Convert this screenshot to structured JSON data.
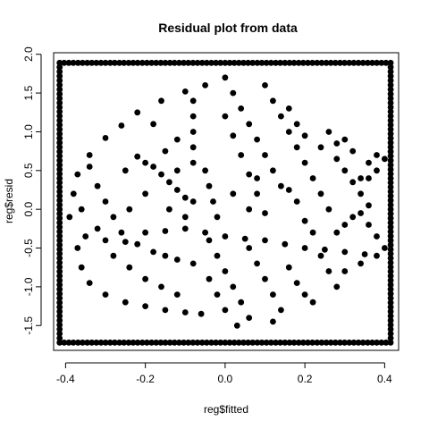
{
  "chart_data": {
    "type": "scatter",
    "title": "Residual plot from data",
    "xlabel": "reg$fitted",
    "ylabel": "reg$resid",
    "xlim": [
      -0.43,
      0.435
    ],
    "ylim": [
      -1.82,
      2.02
    ],
    "x_ticks": [
      -0.4,
      -0.2,
      0.0,
      0.2,
      0.4
    ],
    "x_tick_labels": [
      "-0.4",
      "-0.2",
      "0.0",
      "0.2",
      "0.4"
    ],
    "y_ticks": [
      -1.5,
      -1.0,
      -0.5,
      0.0,
      0.5,
      1.0,
      1.5,
      2.0
    ],
    "y_tick_labels": [
      "-1.5",
      "-1.0",
      "-0.5",
      "0.0",
      "0.5",
      "1.0",
      "1.5",
      "2.0"
    ],
    "grid": false,
    "point_color": "#000000",
    "frame_points": {
      "x_range": [
        -0.415,
        0.415
      ],
      "y_range": [
        -1.72,
        1.89
      ]
    },
    "series": [
      {
        "points": [
          [
            -0.26,
            1.08
          ],
          [
            -0.22,
            1.25
          ],
          [
            -0.16,
            1.4
          ],
          [
            -0.1,
            1.52
          ],
          [
            -0.05,
            1.6
          ],
          [
            -0.3,
            0.92
          ],
          [
            -0.34,
            0.7
          ],
          [
            -0.37,
            0.45
          ],
          [
            -0.38,
            0.2
          ],
          [
            -0.39,
            -0.1
          ],
          [
            -0.37,
            -0.5
          ],
          [
            -0.36,
            -0.75
          ],
          [
            -0.34,
            -0.95
          ],
          [
            -0.3,
            -1.1
          ],
          [
            -0.25,
            -1.2
          ],
          [
            -0.2,
            -1.25
          ],
          [
            -0.15,
            -1.3
          ],
          [
            -0.1,
            -1.33
          ],
          [
            -0.06,
            -1.35
          ],
          [
            -0.18,
            0.55
          ],
          [
            -0.16,
            0.45
          ],
          [
            -0.14,
            0.35
          ],
          [
            -0.2,
            0.6
          ],
          [
            -0.22,
            0.68
          ],
          [
            -0.12,
            0.25
          ],
          [
            -0.1,
            0.15
          ],
          [
            -0.08,
            0.1
          ],
          [
            -0.15,
            0.75
          ],
          [
            -0.25,
            0.5
          ],
          [
            -0.32,
            0.3
          ],
          [
            -0.3,
            0.1
          ],
          [
            -0.28,
            -0.1
          ],
          [
            -0.26,
            -0.3
          ],
          [
            -0.22,
            -0.45
          ],
          [
            -0.18,
            -0.55
          ],
          [
            -0.15,
            -0.6
          ],
          [
            -0.12,
            -0.65
          ],
          [
            -0.08,
            -0.7
          ],
          [
            -0.35,
            -0.35
          ],
          [
            -0.3,
            -0.4
          ],
          [
            -0.25,
            -0.42
          ],
          [
            -0.2,
            -0.3
          ],
          [
            -0.15,
            -0.28
          ],
          [
            -0.1,
            -0.25
          ],
          [
            -0.05,
            -0.3
          ],
          [
            0.0,
            -0.35
          ],
          [
            0.05,
            -0.38
          ],
          [
            0.1,
            -0.4
          ],
          [
            0.15,
            -0.45
          ],
          [
            0.2,
            -0.5
          ],
          [
            0.25,
            -0.52
          ],
          [
            0.3,
            -0.55
          ],
          [
            0.35,
            -0.58
          ],
          [
            -0.08,
            0.6
          ],
          [
            -0.08,
            0.8
          ],
          [
            -0.08,
            1.0
          ],
          [
            -0.08,
            1.2
          ],
          [
            -0.08,
            1.4
          ],
          [
            -0.05,
            0.5
          ],
          [
            -0.04,
            0.3
          ],
          [
            -0.03,
            0.1
          ],
          [
            -0.02,
            -0.1
          ],
          [
            0.0,
            1.7
          ],
          [
            0.02,
            1.5
          ],
          [
            0.04,
            1.3
          ],
          [
            0.06,
            1.1
          ],
          [
            0.08,
            0.9
          ],
          [
            0.1,
            0.7
          ],
          [
            0.12,
            0.5
          ],
          [
            0.14,
            0.3
          ],
          [
            0.0,
            1.2
          ],
          [
            0.02,
            0.95
          ],
          [
            0.04,
            0.7
          ],
          [
            0.06,
            0.45
          ],
          [
            0.08,
            0.2
          ],
          [
            0.1,
            -0.05
          ],
          [
            0.1,
            1.6
          ],
          [
            0.12,
            1.4
          ],
          [
            0.14,
            1.2
          ],
          [
            0.16,
            1.0
          ],
          [
            0.18,
            0.8
          ],
          [
            0.2,
            0.6
          ],
          [
            0.22,
            0.4
          ],
          [
            0.24,
            0.2
          ],
          [
            0.26,
            0.0
          ],
          [
            0.16,
            1.3
          ],
          [
            0.18,
            1.1
          ],
          [
            0.2,
            0.95
          ],
          [
            0.24,
            0.8
          ],
          [
            0.28,
            0.65
          ],
          [
            0.3,
            0.5
          ],
          [
            0.32,
            0.35
          ],
          [
            0.34,
            0.2
          ],
          [
            0.36,
            0.05
          ],
          [
            0.26,
            1.0
          ],
          [
            0.28,
            0.85
          ],
          [
            0.32,
            0.75
          ],
          [
            0.36,
            0.6
          ],
          [
            0.38,
            0.5
          ],
          [
            0.4,
            0.65
          ],
          [
            0.38,
            0.7
          ],
          [
            0.36,
            0.4
          ],
          [
            0.34,
            -0.05
          ],
          [
            0.36,
            -0.2
          ],
          [
            0.38,
            -0.35
          ],
          [
            0.4,
            -0.5
          ],
          [
            0.38,
            -0.6
          ],
          [
            0.34,
            -0.7
          ],
          [
            0.3,
            -0.8
          ],
          [
            -0.04,
            -0.4
          ],
          [
            -0.02,
            -0.6
          ],
          [
            0.0,
            -0.8
          ],
          [
            0.02,
            -1.0
          ],
          [
            0.04,
            -1.2
          ],
          [
            0.06,
            -1.4
          ],
          [
            0.03,
            -1.5
          ],
          [
            0.0,
            -1.3
          ],
          [
            -0.02,
            -1.1
          ],
          [
            -0.04,
            -0.9
          ],
          [
            0.06,
            -0.5
          ],
          [
            0.08,
            -0.7
          ],
          [
            0.1,
            -0.9
          ],
          [
            0.12,
            -1.1
          ],
          [
            0.14,
            -1.3
          ],
          [
            0.12,
            -1.45
          ],
          [
            0.16,
            -0.75
          ],
          [
            0.18,
            -0.95
          ],
          [
            0.2,
            -1.1
          ],
          [
            0.22,
            -1.2
          ],
          [
            0.24,
            -0.6
          ],
          [
            0.26,
            -0.8
          ],
          [
            0.28,
            -1.0
          ],
          [
            0.22,
            -0.3
          ],
          [
            0.2,
            -0.15
          ],
          [
            0.28,
            -0.3
          ],
          [
            0.3,
            -0.2
          ],
          [
            0.32,
            -0.1
          ],
          [
            0.18,
            0.1
          ],
          [
            0.16,
            0.25
          ],
          [
            0.3,
            0.9
          ],
          [
            0.34,
            0.4
          ],
          [
            0.06,
            0.0
          ],
          [
            0.02,
            0.2
          ],
          [
            0.08,
            0.4
          ],
          [
            -0.12,
            0.5
          ],
          [
            -0.2,
            0.2
          ],
          [
            -0.24,
            0.0
          ],
          [
            -0.14,
            0.0
          ],
          [
            -0.1,
            -0.1
          ],
          [
            -0.28,
            -0.6
          ],
          [
            -0.24,
            -0.75
          ],
          [
            -0.2,
            -0.9
          ],
          [
            -0.16,
            -1.0
          ],
          [
            -0.12,
            -1.1
          ],
          [
            -0.32,
            -0.25
          ],
          [
            -0.36,
            0.0
          ],
          [
            -0.34,
            0.55
          ],
          [
            -0.12,
            0.9
          ],
          [
            -0.18,
            1.1
          ]
        ]
      }
    ]
  }
}
